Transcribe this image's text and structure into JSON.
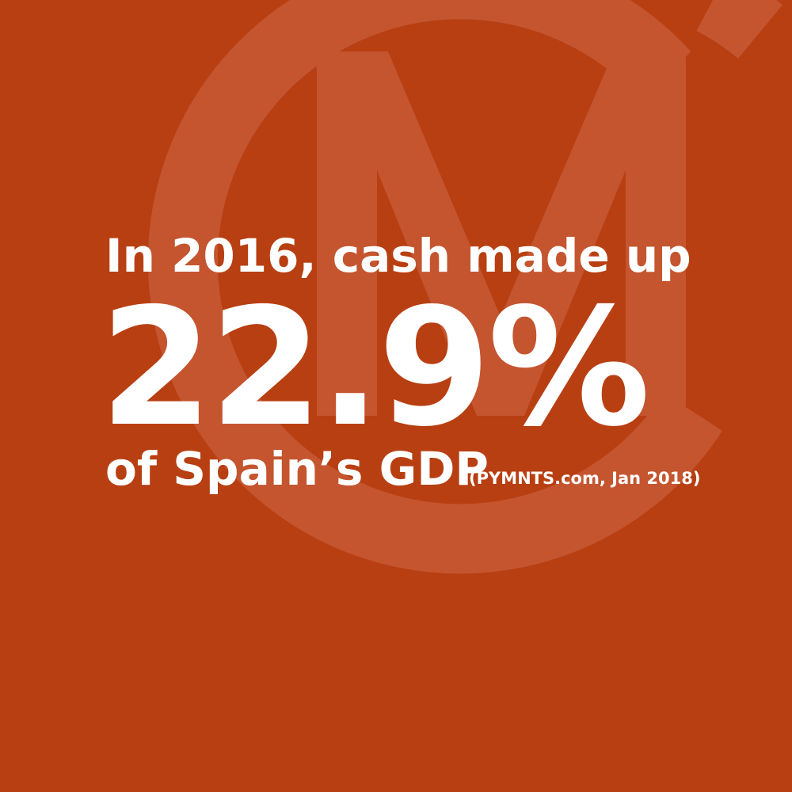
{
  "headline": {
    "lead": "In 2016, cash made up",
    "figure": "22.9%",
    "tail": "of Spain’s GDP",
    "source": "(PYMNTS.com, Jan 2018)"
  }
}
